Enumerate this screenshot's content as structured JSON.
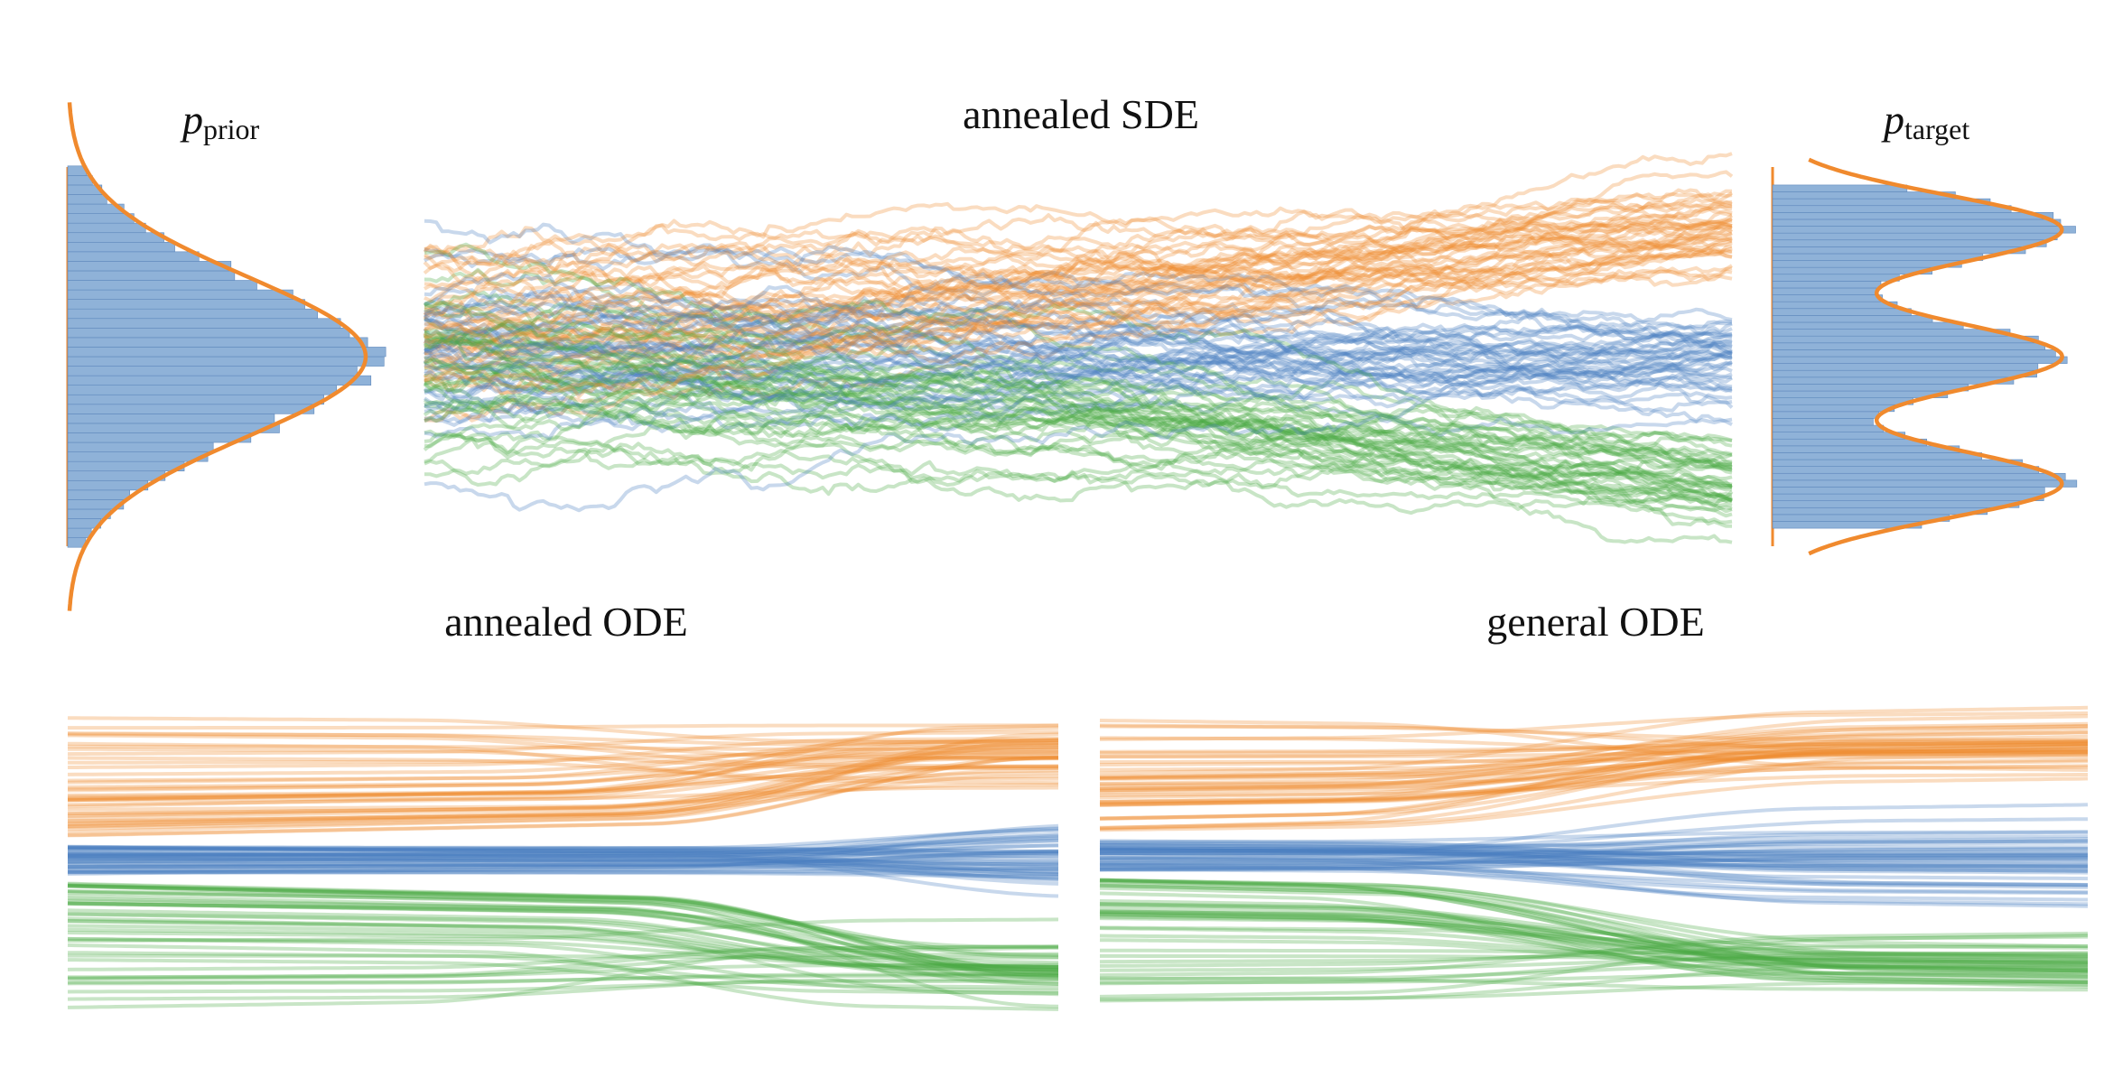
{
  "titles": {
    "prior_p": "p",
    "prior_sub": "prior",
    "sde": "annealed SDE",
    "target_p": "p",
    "target_sub": "target",
    "annealed_ode": "annealed ODE",
    "general_ode": "general ODE"
  },
  "colors": {
    "blue": "#4a7fbf",
    "orange": "#f08a2e",
    "green": "#4aa843",
    "hist": "#8fb2d8",
    "density": "#f08a2e"
  },
  "prior": {
    "type": "gaussian",
    "mean": 0,
    "std": 1
  },
  "target": {
    "type": "gaussian-mixture",
    "means": [
      -1,
      0,
      1
    ],
    "weights": [
      0.333,
      0.333,
      0.333
    ]
  }
}
